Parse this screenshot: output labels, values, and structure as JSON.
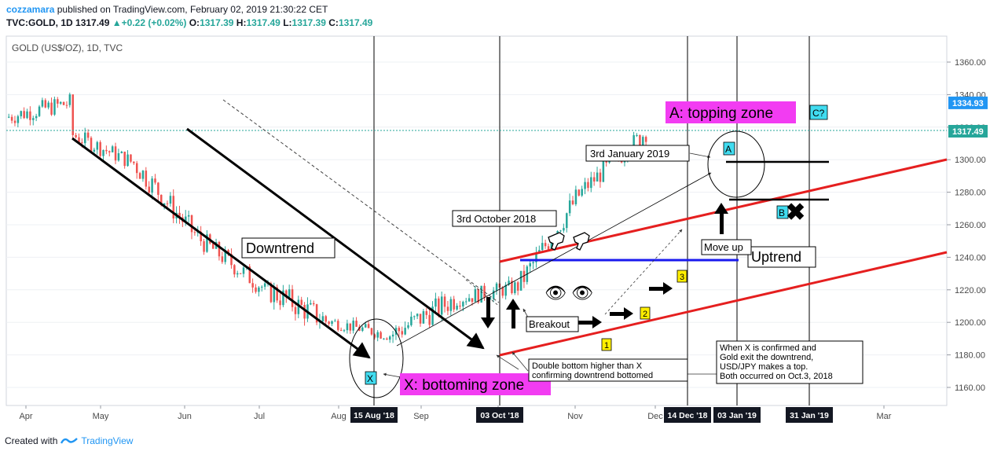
{
  "header": {
    "author": "cozzamara",
    "published": "published on TradingView.com, February 02, 2019 21:30:22 CET",
    "symbol": "TVC:GOLD, 1D",
    "last": "1317.49",
    "change": "+0.22 (+0.02%)",
    "o_label": "O:",
    "o": "1317.39",
    "h_label": "H:",
    "h": "1317.49",
    "l_label": "L:",
    "l": "1317.39",
    "c_label": "C:",
    "c": "1317.49"
  },
  "footer": {
    "created_with": "Created with",
    "brand": "TradingView"
  },
  "colors": {
    "up": "#26a69a",
    "down": "#ef5350",
    "trend_red": "#e51f1f",
    "blue_line": "#1a1aee",
    "magenta": "#f23cf2",
    "cyan": "#41dcf0",
    "yellow": "#ffef00"
  },
  "chart_data": {
    "type": "candlestick",
    "title": "GOLD (US$/OZ), 1D, TVC",
    "y_axis": {
      "ticks": [
        1160,
        1180,
        1200,
        1220,
        1240,
        1260,
        1280,
        1300,
        1320,
        1340,
        1360
      ],
      "range": [
        1150,
        1370
      ]
    },
    "x_axis": {
      "months": [
        "Apr",
        "May",
        "Jun",
        "Jul",
        "Aug",
        "Sep",
        "Oct",
        "Nov",
        "Dec",
        "Mar"
      ],
      "highlight_dates": [
        "15 Aug '18",
        "03 Oct '18",
        "14 Dec '18",
        "03 Jan '19",
        "31 Jan '19"
      ]
    },
    "price_labels": [
      {
        "value": 1334.93,
        "label": "1334.93",
        "color": "#2196f3"
      },
      {
        "value": 1317.49,
        "label": "1317.49",
        "color": "#26a69a"
      }
    ],
    "series": [
      {
        "period": "Apr 2018",
        "open": 1326,
        "high": 1365,
        "low": 1318,
        "close": 1335
      },
      {
        "period": "May 2018",
        "open": 1316,
        "high": 1326,
        "low": 1282,
        "close": 1298
      },
      {
        "period": "Jun 2018",
        "open": 1298,
        "high": 1312,
        "low": 1250,
        "close": 1252
      },
      {
        "period": "Jul 2018",
        "open": 1252,
        "high": 1266,
        "low": 1212,
        "close": 1222
      },
      {
        "period": "Aug 2018",
        "open": 1222,
        "high": 1226,
        "low": 1160,
        "close": 1201
      },
      {
        "period": "Sep 2018",
        "open": 1201,
        "high": 1214,
        "low": 1181,
        "close": 1192
      },
      {
        "period": "Oct 2018",
        "open": 1192,
        "high": 1243,
        "low": 1181,
        "close": 1214
      },
      {
        "period": "Nov 2018",
        "open": 1214,
        "high": 1238,
        "low": 1196,
        "close": 1222
      },
      {
        "period": "Dec 2018",
        "open": 1222,
        "high": 1284,
        "low": 1221,
        "close": 1281
      },
      {
        "period": "Jan 2019",
        "open": 1281,
        "high": 1326,
        "low": 1275,
        "close": 1317
      }
    ],
    "annotations": {
      "downtrend": "Downtrend",
      "uptrend": "Uptrend",
      "x_zone": "X: bottoming zone",
      "a_zone": "A: topping zone",
      "label_x": "X",
      "label_a": "A",
      "label_b": "B",
      "label_c": "C?",
      "num1": "1",
      "num2": "2",
      "num3": "3",
      "oct": "3rd October 2018",
      "jan": "3rd January 2019",
      "breakout": "Breakout",
      "moveup": "Move up",
      "dbl1": "Double bottom higher than X",
      "dbl2": "confirming downtrend bottomed",
      "note1": "When X is confirmed and",
      "note2": "Gold exit the downtrend,",
      "note3": "USD/JPY makes a top.",
      "note4": "Both occurred on Oct.3, 2018",
      "eyes": "👁 👁",
      "x_mark": "✖"
    }
  }
}
